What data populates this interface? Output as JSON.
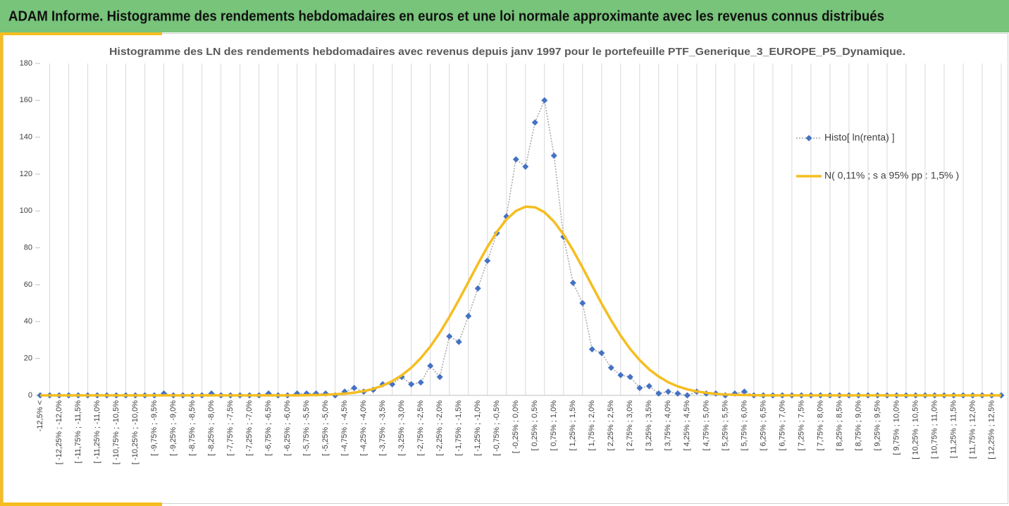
{
  "header": {
    "title": "ADAM Informe. Histogramme des rendements hebdomadaires en euros et une loi normale approximante avec les revenus connus distribués"
  },
  "chart_data": {
    "type": "line",
    "title": "Histogramme des LN des rendements hebdomadaires avec revenus depuis janv 1997 pour le portefeuille PTF_Generique_3_EUROPE_P5_Dynamique.",
    "categories": [
      "-12,5% <",
      null,
      "[ -12,25% ; -12,0%",
      null,
      "[ -11,75% ; -11,5%",
      null,
      "[ -11,25% ; -11,0%",
      null,
      "[ -10,75% ; -10,5%",
      null,
      "[ -10,25% ; -10,0%",
      null,
      "[ -9,75% ; -9,5%",
      null,
      "[ -9,25% ; -9,0%",
      null,
      "[ -8,75% ; -8,5%",
      null,
      "[ -8,25% ; -8,0%",
      null,
      "[ -7,75% ; -7,5%",
      null,
      "[ -7,25% ; -7,0%",
      null,
      "[ -6,75% ; -6,5%",
      null,
      "[ -6,25% ; -6,0%",
      null,
      "[ -5,75% ; -5,5%",
      null,
      "[ -5,25% ; -5,0%",
      null,
      "[ -4,75% ; -4,5%",
      null,
      "[ -4,25% ; -4,0%",
      null,
      "[ -3,75% ; -3,5%",
      null,
      "[ -3,25% ; -3,0%",
      null,
      "[ -2,75% ; -2,5%",
      null,
      "[ -2,25% ; -2,0%",
      null,
      "[ -1,75% ; -1,5%",
      null,
      "[ -1,25% ; -1,0%",
      null,
      "[ -0,75% ; -0,5%",
      null,
      "[ -0,25% ; 0,0%",
      null,
      "[ 0,25% ; 0,5%",
      null,
      "[ 0,75% ; 1,0%",
      null,
      "[ 1,25% ; 1,5%",
      null,
      "[ 1,75% ; 2,0%",
      null,
      "[ 2,25% ; 2,5%",
      null,
      "[ 2,75% ; 3,0%",
      null,
      "[ 3,25% ; 3,5%",
      null,
      "[ 3,75% ; 4,0%",
      null,
      "[ 4,25% ; 4,5%",
      null,
      "[ 4,75% ; 5,0%",
      null,
      "[ 5,25% ; 5,5%",
      null,
      "[ 5,75% ; 6,0%",
      null,
      "[ 6,25% ; 6,5%",
      null,
      "[ 6,75% ; 7,0%",
      null,
      "[ 7,25% ; 7,5%",
      null,
      "[ 7,75% ; 8,0%",
      null,
      "[ 8,25% ; 8,5%",
      null,
      "[ 8,75% ; 9,0%",
      null,
      "[ 9,25% ; 9,5%",
      null,
      "[ 9,75% ; 10,0%",
      null,
      "[ 10,25% ; 10,5%",
      null,
      "[ 10,75% ; 11,0%",
      null,
      "[ 11,25% ; 11,5%",
      null,
      "[ 11,75% ; 12,0%",
      null,
      "[ 12,25% ; 12,5%",
      null
    ],
    "series": [
      {
        "name": "Histo[ ln(renta) ]",
        "color": "#4472c4",
        "line_color": "#a6a6a6",
        "marker": "diamond",
        "line": "dotted",
        "values": [
          0,
          0,
          0,
          0,
          0,
          0,
          0,
          0,
          0,
          0,
          0,
          0,
          0,
          1,
          0,
          0,
          0,
          0,
          1,
          0,
          0,
          0,
          0,
          0,
          1,
          0,
          0,
          1,
          1,
          1,
          1,
          0,
          2,
          4,
          2,
          3,
          6,
          6,
          10,
          6,
          7,
          16,
          10,
          32,
          29,
          43,
          58,
          73,
          88,
          97,
          128,
          124,
          148,
          160,
          130,
          86,
          61,
          50,
          25,
          23,
          15,
          11,
          10,
          4,
          5,
          1,
          2,
          1,
          0,
          2,
          1,
          1,
          0,
          1,
          2,
          0,
          0,
          0,
          0,
          0,
          0,
          0,
          0,
          0,
          0,
          0,
          0,
          0,
          0,
          0,
          0,
          0,
          0,
          0,
          0,
          0,
          0,
          0,
          0,
          0,
          0,
          0
        ]
      },
      {
        "name": "N( 0,11% ; s a 95% pp : 1,5% )",
        "color": "#f5bd1f",
        "line_color": "#f5bd1f",
        "marker": "none",
        "line": "solid",
        "values": [
          0,
          0,
          0,
          0,
          0,
          0,
          0,
          0,
          0,
          0,
          0,
          0,
          0,
          0,
          0,
          0,
          0,
          0,
          0,
          0,
          0,
          0,
          0,
          0,
          0,
          0,
          0,
          0,
          0.1,
          0.2,
          0.3,
          0.6,
          0.9,
          1.5,
          2.3,
          3.5,
          5.3,
          7.7,
          10.9,
          15.0,
          20.2,
          26.5,
          34.0,
          42.5,
          51.7,
          61.4,
          71.2,
          80.5,
          88.7,
          95.4,
          100.0,
          102.3,
          102.0,
          99.3,
          94.2,
          87.2,
          78.7,
          69.3,
          59.5,
          49.8,
          40.7,
          32.4,
          25.2,
          19.1,
          14.1,
          10.2,
          7.1,
          4.9,
          3.3,
          2.1,
          1.4,
          0.8,
          0.5,
          0.3,
          0.2,
          0.1,
          0,
          0,
          0,
          0,
          0,
          0,
          0,
          0,
          0,
          0,
          0,
          0,
          0,
          0,
          0,
          0,
          0,
          0,
          0,
          0,
          0,
          0,
          0,
          0,
          0,
          0
        ]
      }
    ],
    "ylim": [
      0,
      180
    ],
    "yticks": [
      0,
      20,
      40,
      60,
      80,
      100,
      120,
      140,
      160,
      180
    ],
    "grid": "x",
    "legend": "right"
  }
}
